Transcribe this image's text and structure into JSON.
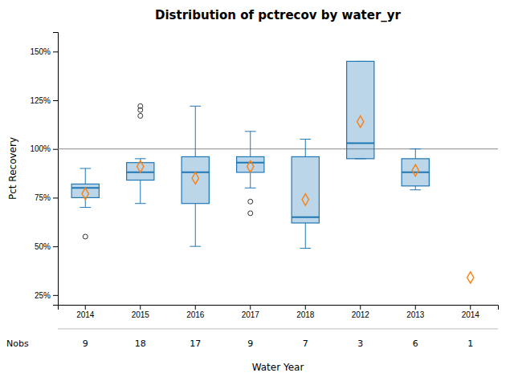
{
  "chart_data": {
    "type": "box",
    "title": "Distribution of pctrecov by water_yr",
    "xlabel": "Water Year",
    "ylabel": "Pct Recovery",
    "categories": [
      "2014",
      "2015",
      "2016",
      "2017",
      "2018",
      "2012",
      "2013",
      "2014"
    ],
    "boxes": [
      {
        "q1": 75,
        "median": 80,
        "q3": 82,
        "whislo": 70,
        "whishi": 90,
        "mean": 77,
        "fliers": [
          55
        ]
      },
      {
        "q1": 84,
        "median": 88,
        "q3": 93,
        "whislo": 72,
        "whishi": 95,
        "mean": 91,
        "fliers": [
          117,
          120,
          122
        ]
      },
      {
        "q1": 72,
        "median": 88,
        "q3": 96,
        "whislo": 50,
        "whishi": 122,
        "mean": 85,
        "fliers": []
      },
      {
        "q1": 88,
        "median": 93,
        "q3": 96,
        "whislo": 80,
        "whishi": 109,
        "mean": 91,
        "fliers": [
          67,
          73
        ]
      },
      {
        "q1": 62,
        "median": 65,
        "q3": 96,
        "whislo": 49,
        "whishi": 105,
        "mean": 74,
        "fliers": []
      },
      {
        "q1": 95,
        "median": 103,
        "q3": 145,
        "whislo": 95,
        "whishi": 145,
        "mean": 114,
        "fliers": []
      },
      {
        "q1": 81,
        "median": 88,
        "q3": 95,
        "whislo": 79,
        "whishi": 100,
        "mean": 89,
        "fliers": []
      },
      {
        "mean": 34,
        "fliers": []
      }
    ],
    "hline": 100,
    "nobs_label": "Nobs",
    "nobs": [
      9,
      18,
      17,
      9,
      7,
      3,
      6,
      1
    ],
    "ylim": [
      20,
      160
    ],
    "yticks": [
      {
        "value": 25,
        "label": "25%"
      },
      {
        "value": 50,
        "label": "50%"
      },
      {
        "value": 75,
        "label": "75%"
      },
      {
        "value": 100,
        "label": "100%"
      },
      {
        "value": 125,
        "label": "125%"
      },
      {
        "value": 150,
        "label": "150%"
      }
    ]
  }
}
